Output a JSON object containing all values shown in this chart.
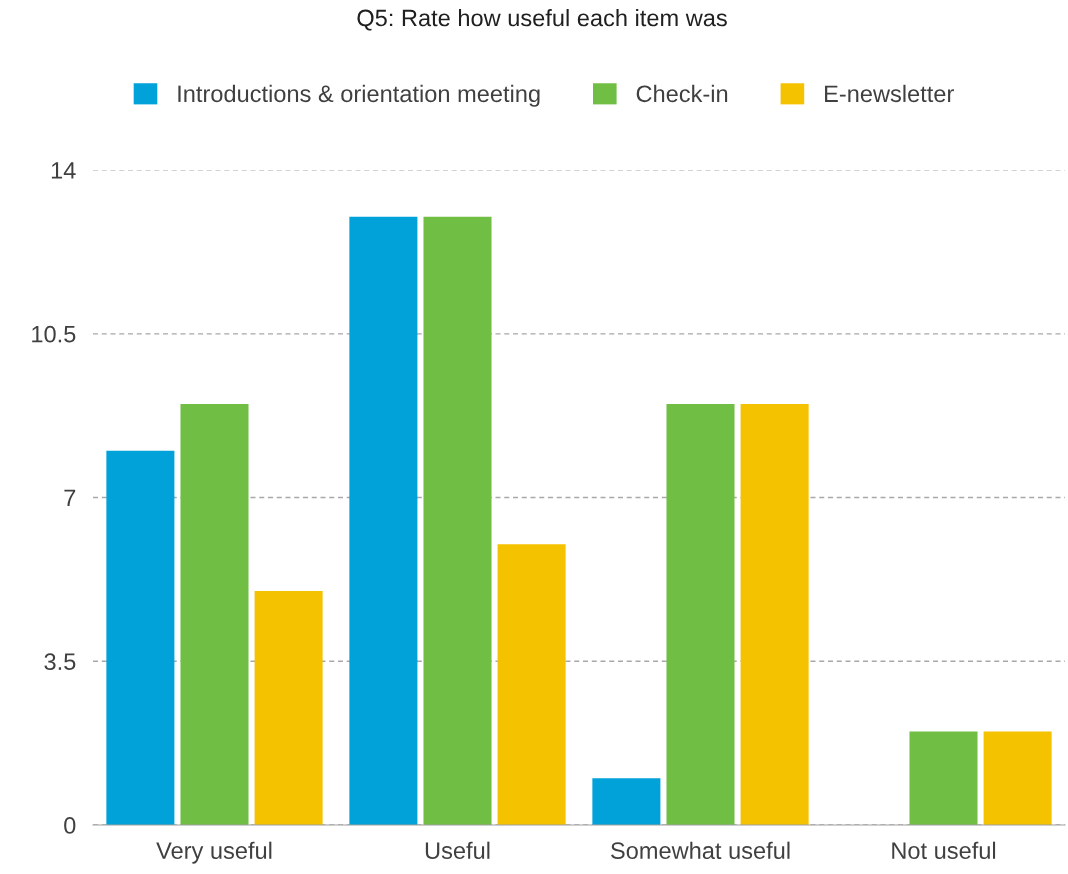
{
  "chart_data": {
    "type": "bar",
    "title": "Q5: Rate how useful each item was",
    "categories": [
      "Very useful",
      "Useful",
      "Somewhat useful",
      "Not useful"
    ],
    "series": [
      {
        "name": "Introductions & orientation meeting",
        "color": "#00a2d9",
        "values": [
          8,
          13,
          1,
          0
        ]
      },
      {
        "name": "Check-in",
        "color": "#70bf44",
        "values": [
          9,
          13,
          9,
          2
        ]
      },
      {
        "name": "E-newsletter",
        "color": "#f5c200",
        "values": [
          5,
          6,
          9,
          2
        ]
      }
    ],
    "ylim": [
      0,
      14
    ],
    "yticks": [
      0,
      3.5,
      7,
      10.5,
      14
    ],
    "grid": "y",
    "legend": "top"
  }
}
